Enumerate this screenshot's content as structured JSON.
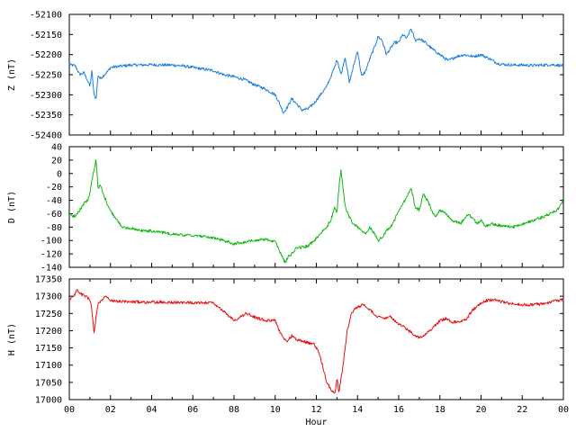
{
  "chart_data": [
    {
      "type": "line",
      "panel": "Z",
      "ylabel": "Z (nT)",
      "ylim": [
        -52400,
        -52100
      ],
      "yticks": [
        -52100,
        -52150,
        -52200,
        -52250,
        -52300,
        -52350,
        -52400
      ],
      "xlim": [
        0,
        24
      ],
      "color": "#1c7fe0",
      "series": [
        {
          "x": [
            0,
            0.3,
            0.5,
            0.7,
            0.9,
            1.0,
            1.1,
            1.2,
            1.3,
            1.4,
            1.5,
            1.7,
            1.9,
            2.0,
            2.3,
            2.6,
            3.0,
            3.5,
            4.0,
            4.5,
            5.0,
            5.5,
            6.0,
            6.5,
            7.0,
            7.5,
            8.0,
            8.5,
            9.0,
            9.5,
            10.0,
            10.2,
            10.4,
            10.6,
            10.8,
            11.0,
            11.3,
            11.6,
            11.9,
            12.2,
            12.5,
            12.7,
            12.9,
            13.0,
            13.2,
            13.4,
            13.6,
            13.8,
            14.0,
            14.2,
            14.4,
            14.6,
            14.8,
            15.0,
            15.2,
            15.4,
            15.6,
            15.8,
            16.0,
            16.2,
            16.4,
            16.6,
            16.8,
            17.0,
            17.3,
            17.6,
            18.0,
            18.4,
            18.8,
            19.2,
            19.6,
            20.0,
            20.4,
            20.8,
            21.2,
            21.6,
            22.0,
            22.5,
            23.0,
            23.5,
            24.0
          ],
          "y": [
            -52225,
            -52228,
            -52250,
            -52245,
            -52265,
            -52280,
            -52240,
            -52300,
            -52310,
            -52250,
            -52260,
            -52250,
            -52240,
            -52232,
            -52230,
            -52228,
            -52226,
            -52226,
            -52225,
            -52226,
            -52226,
            -52228,
            -52232,
            -52236,
            -52240,
            -52250,
            -52255,
            -52262,
            -52275,
            -52285,
            -52300,
            -52320,
            -52345,
            -52330,
            -52310,
            -52320,
            -52338,
            -52335,
            -52320,
            -52300,
            -52280,
            -52255,
            -52230,
            -52210,
            -52250,
            -52205,
            -52270,
            -52230,
            -52190,
            -52255,
            -52240,
            -52210,
            -52185,
            -52155,
            -52165,
            -52200,
            -52185,
            -52170,
            -52170,
            -52150,
            -52160,
            -52135,
            -52165,
            -52160,
            -52170,
            -52185,
            -52200,
            -52215,
            -52205,
            -52200,
            -52205,
            -52200,
            -52210,
            -52222,
            -52225,
            -52226,
            -52226,
            -52227,
            -52226,
            -52225,
            -52228
          ]
        }
      ]
    },
    {
      "type": "line",
      "panel": "D",
      "ylabel": "D (nT)",
      "ylim": [
        -140,
        40
      ],
      "yticks": [
        40,
        20,
        0,
        -20,
        -40,
        -60,
        -80,
        -100,
        -120,
        -140
      ],
      "xlim": [
        0,
        24
      ],
      "color": "#11b711",
      "series": [
        {
          "x": [
            0,
            0.3,
            0.5,
            0.7,
            0.9,
            1.0,
            1.1,
            1.2,
            1.3,
            1.4,
            1.5,
            1.7,
            2.0,
            2.3,
            2.6,
            3.0,
            3.5,
            4.0,
            4.5,
            5.0,
            5.5,
            6.0,
            6.5,
            7.0,
            7.5,
            8.0,
            8.5,
            9.0,
            9.5,
            10.0,
            10.2,
            10.4,
            10.5,
            10.6,
            10.8,
            11.0,
            11.3,
            11.6,
            11.9,
            12.2,
            12.5,
            12.7,
            12.9,
            13.0,
            13.1,
            13.2,
            13.4,
            13.6,
            13.8,
            14.0,
            14.2,
            14.4,
            14.6,
            14.8,
            15.0,
            15.2,
            15.4,
            15.6,
            15.8,
            16.0,
            16.2,
            16.4,
            16.6,
            16.8,
            17.0,
            17.2,
            17.4,
            17.6,
            17.8,
            18.0,
            18.3,
            18.6,
            19.0,
            19.4,
            19.8,
            20.0,
            20.2,
            20.5,
            21.0,
            21.5,
            22.0,
            22.5,
            23.0,
            23.5,
            23.8,
            24.0
          ],
          "y": [
            -62,
            -64,
            -55,
            -45,
            -40,
            -30,
            -10,
            5,
            22,
            -25,
            -15,
            -35,
            -55,
            -70,
            -80,
            -82,
            -85,
            -86,
            -88,
            -90,
            -92,
            -93,
            -94,
            -96,
            -100,
            -105,
            -102,
            -100,
            -98,
            -102,
            -115,
            -128,
            -133,
            -125,
            -120,
            -112,
            -110,
            -108,
            -100,
            -90,
            -80,
            -70,
            -50,
            -60,
            -20,
            5,
            -50,
            -65,
            -75,
            -80,
            -85,
            -90,
            -80,
            -88,
            -100,
            -95,
            -85,
            -80,
            -70,
            -55,
            -45,
            -35,
            -20,
            -50,
            -55,
            -30,
            -40,
            -55,
            -65,
            -55,
            -60,
            -70,
            -75,
            -60,
            -75,
            -70,
            -80,
            -75,
            -78,
            -80,
            -76,
            -70,
            -65,
            -58,
            -52,
            -38
          ]
        }
      ]
    },
    {
      "type": "line",
      "panel": "H",
      "ylabel": "H (nT)",
      "ylim": [
        17000,
        17350
      ],
      "yticks": [
        17350,
        17300,
        17250,
        17200,
        17150,
        17100,
        17050,
        17000
      ],
      "xlim": [
        0,
        24
      ],
      "color": "#e51111",
      "xticks": [
        "00",
        "02",
        "04",
        "06",
        "08",
        "10",
        "12",
        "14",
        "16",
        "18",
        "20",
        "22",
        "00"
      ],
      "xlabel": "Hour",
      "series": [
        {
          "x": [
            0,
            0.2,
            0.4,
            0.6,
            0.8,
            1.0,
            1.1,
            1.2,
            1.3,
            1.4,
            1.6,
            1.8,
            2.0,
            2.5,
            3.0,
            3.5,
            4.0,
            4.5,
            5.0,
            5.5,
            6.0,
            6.5,
            7.0,
            7.3,
            7.6,
            8.0,
            8.3,
            8.6,
            9.0,
            9.5,
            10.0,
            10.2,
            10.4,
            10.6,
            10.8,
            11.0,
            11.3,
            11.6,
            11.9,
            12.1,
            12.3,
            12.5,
            12.7,
            12.9,
            13.0,
            13.1,
            13.3,
            13.5,
            13.7,
            14.0,
            14.3,
            14.6,
            15.0,
            15.3,
            15.6,
            16.0,
            16.3,
            16.6,
            17.0,
            17.3,
            17.6,
            18.0,
            18.3,
            18.6,
            19.0,
            19.3,
            19.6,
            20.0,
            20.3,
            20.6,
            21.0,
            21.5,
            22.0,
            22.5,
            23.0,
            23.5,
            24.0
          ],
          "y": [
            17290,
            17300,
            17318,
            17305,
            17300,
            17290,
            17260,
            17190,
            17240,
            17280,
            17290,
            17300,
            17288,
            17285,
            17284,
            17283,
            17283,
            17283,
            17282,
            17282,
            17281,
            17281,
            17280,
            17265,
            17250,
            17230,
            17240,
            17250,
            17240,
            17230,
            17230,
            17200,
            17180,
            17170,
            17185,
            17175,
            17170,
            17165,
            17160,
            17140,
            17100,
            17050,
            17030,
            17015,
            17060,
            17020,
            17100,
            17200,
            17250,
            17270,
            17275,
            17260,
            17240,
            17235,
            17240,
            17220,
            17210,
            17195,
            17180,
            17190,
            17205,
            17230,
            17235,
            17225,
            17225,
            17235,
            17260,
            17280,
            17288,
            17290,
            17284,
            17278,
            17275,
            17275,
            17278,
            17285,
            17290
          ]
        }
      ]
    }
  ]
}
